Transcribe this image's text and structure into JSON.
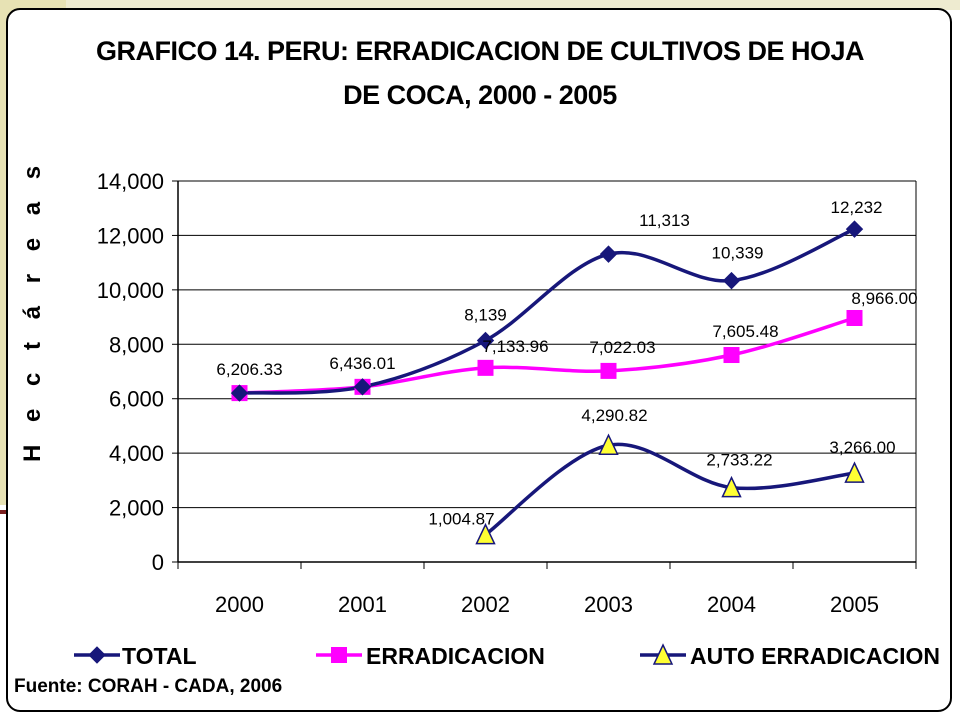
{
  "colors": {
    "total": "#17177a",
    "erradicacion": "#ff00ff",
    "auto_erradicacion": "#17177a",
    "auto_marker_fill": "#ffff33"
  },
  "chart_data": {
    "type": "line",
    "title": "GRAFICO 14. PERU: ERRADICACION DE CULTIVOS DE  HOJA",
    "subtitle": "DE COCA, 2000 - 2005",
    "xlabel": "",
    "ylabel": "H e c t á r e a s",
    "categories": [
      "2000",
      "2001",
      "2002",
      "2003",
      "2004",
      "2005"
    ],
    "ylim": [
      0,
      14000
    ],
    "yticks": [
      0,
      2000,
      4000,
      6000,
      8000,
      10000,
      12000,
      14000
    ],
    "ytick_labels": [
      "0",
      "2,000",
      "4,000",
      "6,000",
      "8,000",
      "10,000",
      "12,000",
      "14,000"
    ],
    "grid": true,
    "legend_position": "bottom",
    "series": [
      {
        "name": "TOTAL",
        "marker": "diamond",
        "values": [
          6206.33,
          6436.01,
          8139,
          11313,
          10339,
          12232
        ],
        "labels": [
          "",
          "",
          "8,139",
          "11,313",
          "10,339",
          "12,232"
        ]
      },
      {
        "name": "ERRADICACION",
        "marker": "square",
        "values": [
          6206.33,
          6436.01,
          7133.96,
          7022.03,
          7605.48,
          8966.0
        ],
        "labels": [
          "6,206.33",
          "6,436.01",
          "7,133.96",
          "7,022.03",
          "7,605.48",
          "8,966.00"
        ]
      },
      {
        "name": "AUTO ERRADICACION",
        "marker": "triangle",
        "values": [
          null,
          null,
          1004.87,
          4290.82,
          2733.22,
          3266.0
        ],
        "labels": [
          "",
          "",
          "1,004.87",
          "4,290.82",
          "2,733.22",
          "3,266.00"
        ]
      }
    ]
  },
  "source_note": "Fuente: CORAH - CADA,  2006"
}
